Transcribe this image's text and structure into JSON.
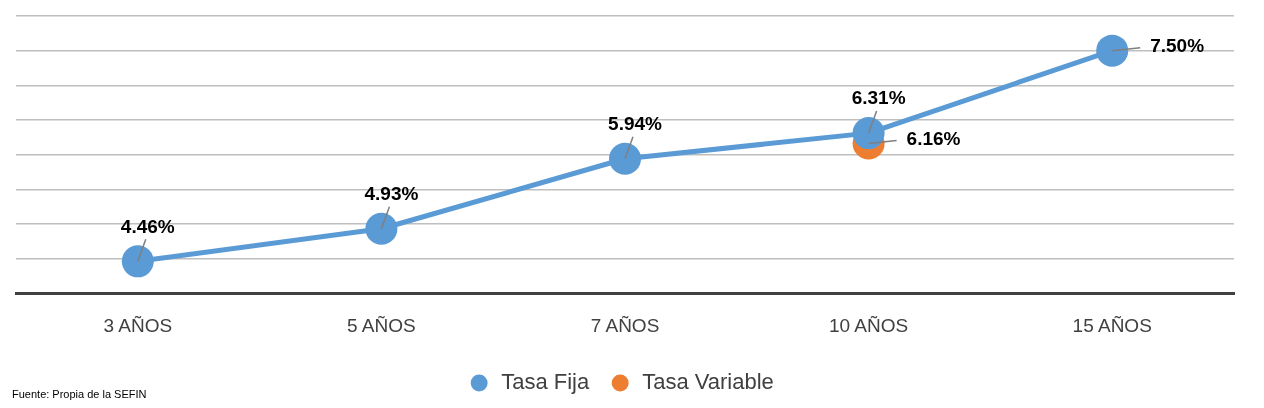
{
  "chart_data": {
    "type": "line",
    "categories": [
      "3 AÑOS",
      "5 AÑOS",
      "7 AÑOS",
      "10 AÑOS",
      "15 AÑOS"
    ],
    "series": [
      {
        "name": "Tasa Fija",
        "color": "#5b9bd5",
        "values": [
          4.46,
          4.93,
          5.94,
          6.31,
          7.5
        ],
        "value_labels": [
          "4.46%",
          "4.93%",
          "5.94%",
          "6.31%",
          "7.50%"
        ]
      },
      {
        "name": "Tasa Variable",
        "color": "#ed7d31",
        "values": [
          null,
          null,
          null,
          6.16,
          null
        ],
        "value_labels": [
          null,
          null,
          null,
          "6.16%",
          null
        ]
      }
    ],
    "ylim": [
      4,
      8
    ],
    "yticks": [
      {
        "value": 4,
        "label": null
      },
      {
        "value": 4.5,
        "label": null
      },
      {
        "value": 5,
        "label": null
      },
      {
        "value": 5.5,
        "label": null
      },
      {
        "value": 6,
        "label": null
      },
      {
        "value": 6.5,
        "label": null
      },
      {
        "value": 7,
        "label": null
      },
      {
        "value": 7.5,
        "label": null
      },
      {
        "value": 8,
        "label": null
      }
    ],
    "tick_labels": "x",
    "grid": "y",
    "legend": "bottom",
    "marker": "circle",
    "line_style": "solid",
    "annotations": [
      "Fuente: Propia de la SEFIN"
    ]
  }
}
